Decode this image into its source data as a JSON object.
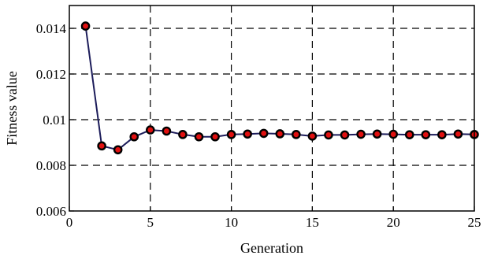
{
  "chart_data": {
    "type": "line",
    "title": "",
    "xlabel": "Generation",
    "ylabel": "Fitness value",
    "xlim": [
      0,
      25
    ],
    "ylim": [
      0.006,
      0.015
    ],
    "xticks": [
      0,
      5,
      10,
      15,
      20,
      25
    ],
    "xtick_labels": [
      "0",
      "5",
      "10",
      "15",
      "20",
      "25"
    ],
    "yticks": [
      0.006,
      0.008,
      0.01,
      0.012,
      0.014
    ],
    "ytick_labels": [
      "0.006",
      "0.008",
      "0.01",
      "0.012",
      "0.014"
    ],
    "grid": true,
    "legend": false,
    "line_color": "#1c1c5a",
    "marker_color": "#e01010",
    "series": [
      {
        "x": [
          1,
          2,
          3,
          4,
          5,
          6,
          7,
          8,
          9,
          10,
          11,
          12,
          13,
          14,
          15,
          16,
          17,
          18,
          19,
          20,
          21,
          22,
          23,
          24,
          25
        ],
        "y": [
          0.0141,
          0.00885,
          0.00868,
          0.00925,
          0.00955,
          0.0095,
          0.00935,
          0.00925,
          0.00925,
          0.00935,
          0.00937,
          0.0094,
          0.00938,
          0.00935,
          0.00928,
          0.00933,
          0.00933,
          0.00936,
          0.00937,
          0.00936,
          0.00934,
          0.00934,
          0.00934,
          0.00937,
          0.00935
        ]
      }
    ]
  }
}
